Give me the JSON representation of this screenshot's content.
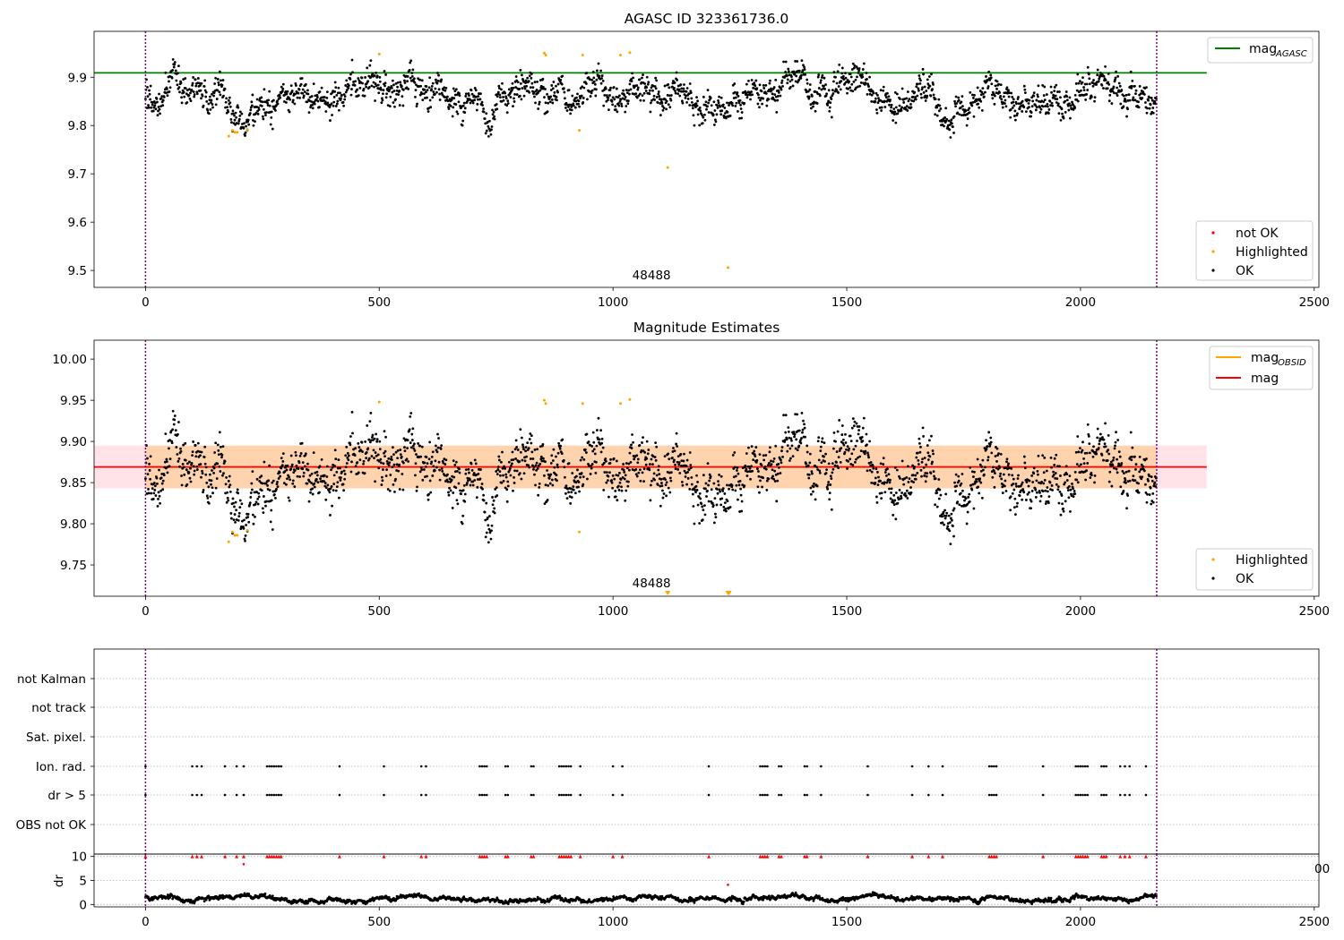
{
  "chart_data": [
    {
      "type": "scatter",
      "title": "AGASC ID 323361736.0",
      "x_range": [
        -110,
        2510
      ],
      "y_range": [
        9.465,
        9.995
      ],
      "x_ticks": [
        0,
        500,
        1000,
        1500,
        2000,
        2500
      ],
      "y_ticks": [
        9.5,
        9.6,
        9.7,
        9.8,
        9.9
      ],
      "grid": false,
      "annotation": "48488",
      "annotation_x": 1000,
      "vlines_x": [
        0,
        2163
      ],
      "reference_lines": [
        {
          "name": "mag",
          "subscript": "AGASC",
          "y": 9.909,
          "x_range": [
            -110,
            2270
          ],
          "color": "#008000"
        }
      ],
      "legend_lines_placement": "top-right",
      "legend_points_placement": "lower-right",
      "point_series": [
        {
          "name": "not OK",
          "color": "#ff0000",
          "points": []
        },
        {
          "name": "Highlighted",
          "color": "#ffa500",
          "points": [
            [
              178,
              9.778
            ],
            [
              186,
              9.79
            ],
            [
              191,
              9.786
            ],
            [
              196,
              9.786
            ],
            [
              218,
              9.792
            ],
            [
              500,
              9.948
            ],
            [
              853,
              9.95
            ],
            [
              856,
              9.946
            ],
            [
              928,
              9.79
            ],
            [
              935,
              9.946
            ],
            [
              1016,
              9.946
            ],
            [
              1036,
              9.951
            ],
            [
              1117,
              9.713
            ],
            [
              1246,
              9.506
            ]
          ]
        },
        {
          "name": "OK",
          "color": "#000000",
          "n": 2163,
          "mean": 9.866,
          "sd": 0.024,
          "seed": 48488
        }
      ]
    },
    {
      "type": "scatter",
      "title": "Magnitude Estimates",
      "x_range": [
        -110,
        2510
      ],
      "y_range": [
        9.712,
        10.023
      ],
      "x_ticks": [
        0,
        500,
        1000,
        1500,
        2000,
        2500
      ],
      "y_ticks": [
        9.75,
        9.8,
        9.85,
        9.9,
        9.95,
        10.0
      ],
      "grid": false,
      "annotation": "48488",
      "annotation_x": 1000,
      "vlines_x": [
        0,
        2163
      ],
      "bands": [
        {
          "y_range": [
            9.843,
            9.895
          ],
          "x_range": [
            -110,
            2270
          ],
          "color": "#ffc0cb"
        },
        {
          "y_range": [
            9.843,
            9.895
          ],
          "x_range": [
            0,
            2163
          ],
          "color": "#ffa500"
        }
      ],
      "reference_lines": [
        {
          "name": "mag",
          "subscript": "OBSID",
          "y": 9.869,
          "x_range": [
            0,
            2163
          ],
          "color": "#ffa500"
        },
        {
          "name": "mag",
          "y": 9.869,
          "x_range": [
            -110,
            2270
          ],
          "color": "#ff0000"
        }
      ],
      "legend_lines_placement": "top-right",
      "legend_points_placement": "lower-right",
      "offscale_markers_x": [
        1117,
        1246,
        1248
      ],
      "point_series": [
        {
          "name": "Highlighted",
          "color": "#ffa500",
          "points": [
            [
              178,
              9.778
            ],
            [
              186,
              9.79
            ],
            [
              191,
              9.786
            ],
            [
              196,
              9.786
            ],
            [
              218,
              9.792
            ],
            [
              500,
              9.948
            ],
            [
              853,
              9.95
            ],
            [
              856,
              9.946
            ],
            [
              928,
              9.79
            ],
            [
              935,
              9.946
            ],
            [
              1016,
              9.946
            ],
            [
              1036,
              9.951
            ]
          ]
        },
        {
          "name": "OK",
          "color": "#000000",
          "n": 2163,
          "mean": 9.866,
          "sd": 0.024,
          "seed": 48488
        }
      ]
    },
    {
      "type": "scatter",
      "x_range": [
        -110,
        2510
      ],
      "categories": [
        "not Kalman",
        "not track",
        "Sat. pixel.",
        "Ion. rad.",
        "dr > 5",
        "OBS not OK"
      ],
      "grid": "horizontal-dotted",
      "vlines_x": [
        0,
        2163
      ],
      "flag_x": [
        0,
        100,
        110,
        120,
        170,
        195,
        210,
        260,
        265,
        270,
        275,
        280,
        285,
        290,
        415,
        510,
        590,
        600,
        715,
        720,
        725,
        730,
        770,
        775,
        825,
        830,
        885,
        890,
        895,
        900,
        905,
        910,
        930,
        1000,
        1020,
        1205,
        1315,
        1320,
        1325,
        1330,
        1355,
        1360,
        1410,
        1415,
        1445,
        1545,
        1640,
        1675,
        1705,
        1805,
        1810,
        1815,
        1820,
        1920,
        1990,
        1995,
        2000,
        2005,
        2010,
        2015,
        2045,
        2050,
        2055,
        2085,
        2095,
        2105,
        2140
      ]
    },
    {
      "type": "scatter",
      "x_range": [
        -110,
        2510
      ],
      "y_range": [
        -0.5,
        10.5
      ],
      "y_ticks": [
        0,
        5,
        10
      ],
      "ylabel": "dr",
      "grid": "horizontal-dotted",
      "vlines_x": [
        0,
        2163
      ],
      "clipped_tick_label": "00",
      "dr_points": [
        [
          210,
          8.4
        ],
        [
          1246,
          4.1
        ]
      ],
      "clipped_color": "#ff0000",
      "base_series": {
        "color": "#000000",
        "mean": 1.2,
        "sd": 0.35,
        "n": 2163,
        "seed": 7
      }
    }
  ]
}
